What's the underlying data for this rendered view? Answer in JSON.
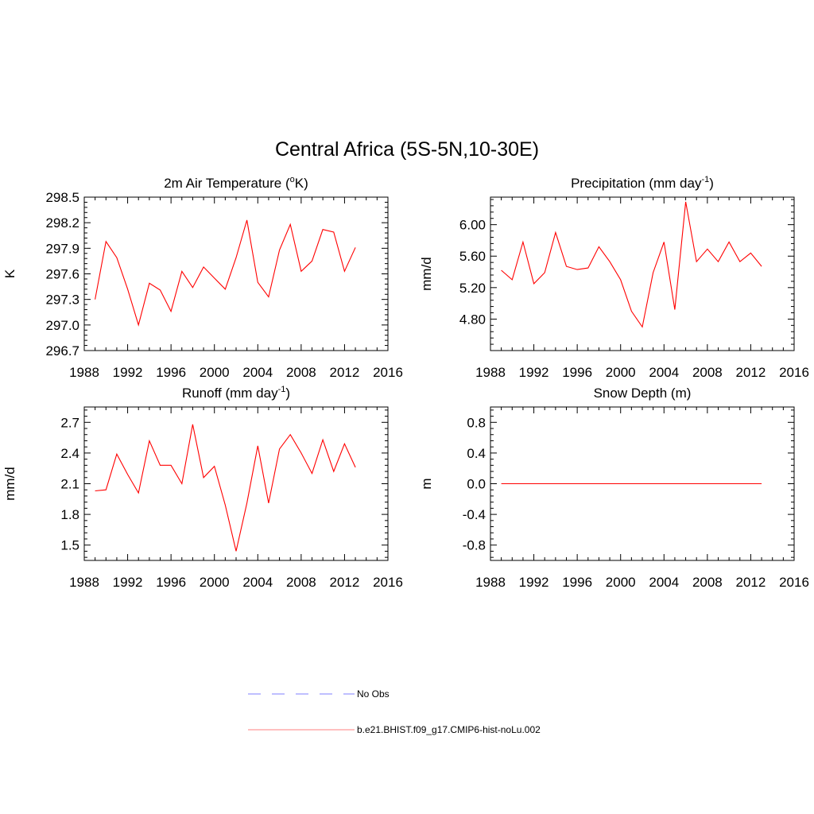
{
  "title": "Central Africa (5S-5N,10-30E)",
  "colors": {
    "model_line": "#ff0000",
    "obs_line": "#9999ff",
    "axes": "#000000"
  },
  "legend": {
    "obs_label": "No Obs",
    "model_label": "b.e21.BHIST.f09_g17.CMIP6-hist-noLu.002"
  },
  "chart_data": [
    {
      "type": "line",
      "title": "2m Air Temperature (",
      "title_sup": "o",
      "title_suffix": "K)",
      "ylabel": "K",
      "xlim": [
        1988,
        2016
      ],
      "ylim": [
        296.7,
        298.5
      ],
      "xticks": [
        "1988",
        "1992",
        "1996",
        "2000",
        "2004",
        "2008",
        "2012",
        "2016"
      ],
      "yticks": [
        "296.7",
        "297.0",
        "297.3",
        "297.6",
        "297.9",
        "298.2",
        "298.5"
      ],
      "series": [
        {
          "x": [
            1989,
            1990,
            1991,
            1992,
            1993,
            1994,
            1995,
            1996,
            1997,
            1998,
            1999,
            2000,
            2001,
            2002,
            2003,
            2004,
            2005,
            2006,
            2007,
            2008,
            2009,
            2010,
            2011,
            2012,
            2013
          ],
          "values": [
            297.3,
            297.98,
            297.79,
            297.42,
            297.0,
            297.49,
            297.41,
            297.16,
            297.63,
            297.44,
            297.68,
            297.55,
            297.42,
            297.79,
            298.23,
            297.5,
            297.33,
            297.88,
            298.18,
            297.63,
            297.75,
            298.12,
            298.09,
            297.63,
            297.91
          ]
        }
      ]
    },
    {
      "type": "line",
      "title": "Precipitation (mm day",
      "title_sup": "-1",
      "title_suffix": ")",
      "ylabel": "mm/d",
      "xlim": [
        1988,
        2016
      ],
      "ylim": [
        4.4,
        6.35
      ],
      "xticks": [
        "1988",
        "1992",
        "1996",
        "2000",
        "2004",
        "2008",
        "2012",
        "2016"
      ],
      "yticks": [
        "4.80",
        "5.20",
        "5.60",
        "6.00"
      ],
      "series": [
        {
          "x": [
            1989,
            1990,
            1991,
            1992,
            1993,
            1994,
            1995,
            1996,
            1997,
            1998,
            1999,
            2000,
            2001,
            2002,
            2003,
            2004,
            2005,
            2006,
            2007,
            2008,
            2009,
            2010,
            2011,
            2012,
            2013
          ],
          "values": [
            5.42,
            5.3,
            5.78,
            5.25,
            5.39,
            5.9,
            5.47,
            5.43,
            5.45,
            5.72,
            5.53,
            5.3,
            4.9,
            4.7,
            5.39,
            5.78,
            4.92,
            6.29,
            5.53,
            5.69,
            5.53,
            5.78,
            5.53,
            5.64,
            5.47
          ]
        }
      ]
    },
    {
      "type": "line",
      "title": "Runoff (mm day",
      "title_sup": "-1",
      "title_suffix": ")",
      "ylabel": "mm/d",
      "xlim": [
        1988,
        2016
      ],
      "ylim": [
        1.35,
        2.85
      ],
      "xticks": [
        "1988",
        "1992",
        "1996",
        "2000",
        "2004",
        "2008",
        "2012",
        "2016"
      ],
      "yticks": [
        "1.5",
        "1.8",
        "2.1",
        "2.4",
        "2.7"
      ],
      "series": [
        {
          "x": [
            1989,
            1990,
            1991,
            1992,
            1993,
            1994,
            1995,
            1996,
            1997,
            1998,
            1999,
            2000,
            2001,
            2002,
            2003,
            2004,
            2005,
            2006,
            2007,
            2008,
            2009,
            2010,
            2011,
            2012,
            2013
          ],
          "values": [
            2.03,
            2.04,
            2.39,
            2.19,
            2.01,
            2.52,
            2.28,
            2.28,
            2.1,
            2.68,
            2.16,
            2.27,
            1.89,
            1.44,
            1.91,
            2.47,
            1.91,
            2.44,
            2.58,
            2.4,
            2.2,
            2.53,
            2.22,
            2.49,
            2.26
          ]
        }
      ]
    },
    {
      "type": "line",
      "title": "Snow Depth (m)",
      "title_sup": "",
      "title_suffix": "",
      "ylabel": "m",
      "xlim": [
        1988,
        2016
      ],
      "ylim": [
        -1.0,
        1.0
      ],
      "xticks": [
        "1988",
        "1992",
        "1996",
        "2000",
        "2004",
        "2008",
        "2012",
        "2016"
      ],
      "yticks": [
        "-0.8",
        "-0.4",
        "0.0",
        "0.4",
        "0.8"
      ],
      "series": [
        {
          "x": [
            1989,
            1990,
            1991,
            1992,
            1993,
            1994,
            1995,
            1996,
            1997,
            1998,
            1999,
            2000,
            2001,
            2002,
            2003,
            2004,
            2005,
            2006,
            2007,
            2008,
            2009,
            2010,
            2011,
            2012,
            2013
          ],
          "values": [
            0,
            0,
            0,
            0,
            0,
            0,
            0,
            0,
            0,
            0,
            0,
            0,
            0,
            0,
            0,
            0,
            0,
            0,
            0,
            0,
            0,
            0,
            0,
            0,
            0
          ]
        }
      ]
    }
  ]
}
